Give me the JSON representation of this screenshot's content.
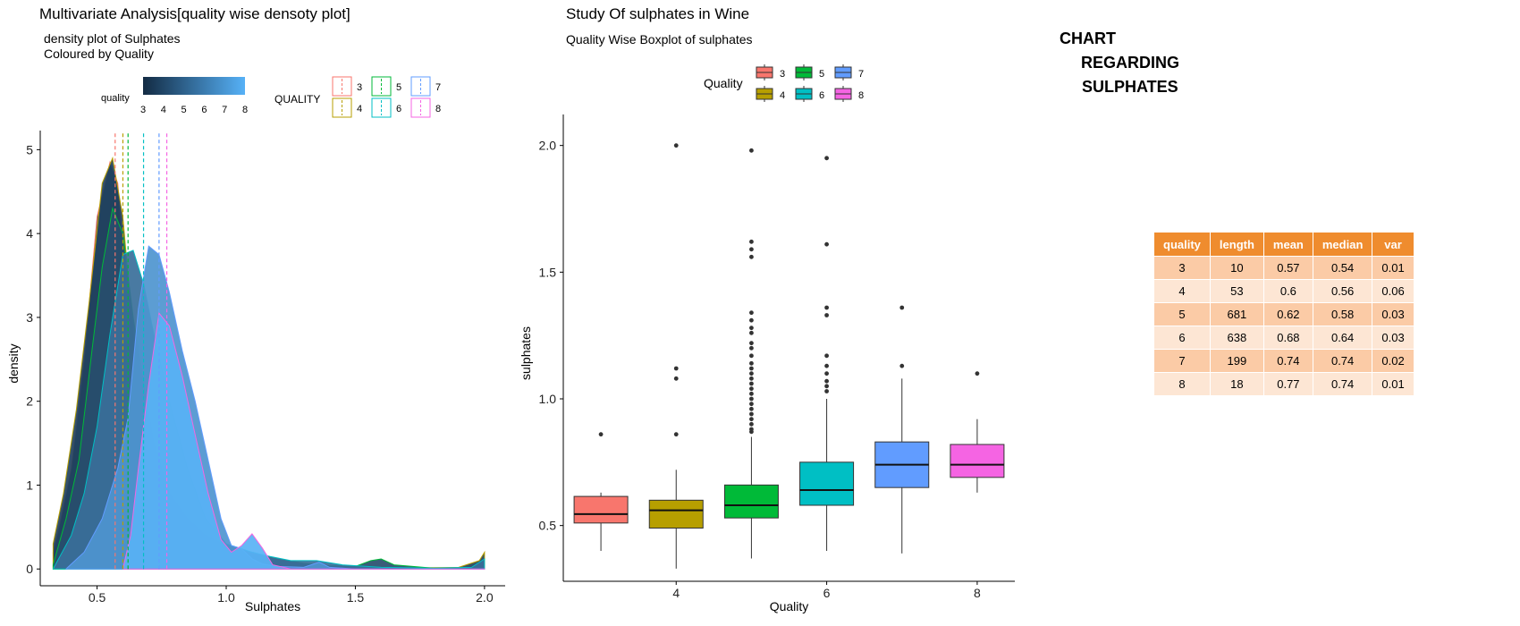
{
  "left_panel": {
    "title": "Multivariate Analysis[quality wise densoty plot]",
    "subtitle_line1": "density plot of Sulphates",
    "subtitle_line2": "Coloured by Quality",
    "legend_fill_title": "quality",
    "legend_fill_ticks": [
      "3",
      "4",
      "5",
      "6",
      "7",
      "8"
    ],
    "legend_line_title": "QUALITY"
  },
  "right_panel": {
    "title": "Study Of  sulphates in Wine",
    "subtitle": "Quality Wise Boxplot of sulphates",
    "legend_title": "Quality"
  },
  "side_title": {
    "line1": "CHART",
    "line2": "REGARDING",
    "line3": "SULPHATES"
  },
  "stats_table": {
    "headers": [
      "quality",
      "length",
      "mean",
      "median",
      "var"
    ],
    "rows": [
      [
        "3",
        "10",
        "0.57",
        "0.54",
        "0.01"
      ],
      [
        "4",
        "53",
        "0.6",
        "0.56",
        "0.06"
      ],
      [
        "5",
        "681",
        "0.62",
        "0.58",
        "0.03"
      ],
      [
        "6",
        "638",
        "0.68",
        "0.64",
        "0.03"
      ],
      [
        "7",
        "199",
        "0.74",
        "0.74",
        "0.02"
      ],
      [
        "8",
        "18",
        "0.77",
        "0.74",
        "0.01"
      ]
    ]
  },
  "colors": {
    "q3": "#f8766d",
    "q4": "#b79f00",
    "q5": "#00ba38",
    "q6": "#00bfc4",
    "q7": "#619cff",
    "q8": "#f564e3",
    "fill_low": "#132b43",
    "fill_high": "#56b1f7",
    "table_header": "#ef8c2e"
  },
  "chart_data": [
    {
      "type": "area",
      "title": "Multivariate Analysis[quality wise densoty plot]",
      "subtitle": "density plot of Sulphates / Coloured by Quality",
      "xlabel": "Sulphates",
      "ylabel": "density",
      "xlim": [
        0.28,
        2.08
      ],
      "ylim": [
        -0.2,
        5.1
      ],
      "xticks": [
        0.5,
        1.0,
        1.5,
        2.0
      ],
      "xtick_labels": [
        "0.5",
        "1.0",
        "1.5",
        "2.0"
      ],
      "yticks": [
        0,
        1,
        2,
        3,
        4,
        5
      ],
      "ytick_labels": [
        "0",
        "1",
        "2",
        "3",
        "4",
        "5"
      ],
      "grid": false,
      "legend_position": "top",
      "mean_lines": [
        {
          "quality": "3",
          "x": 0.57
        },
        {
          "quality": "4",
          "x": 0.6
        },
        {
          "quality": "5",
          "x": 0.62
        },
        {
          "quality": "6",
          "x": 0.68
        },
        {
          "quality": "7",
          "x": 0.74
        },
        {
          "quality": "8",
          "x": 0.77
        }
      ],
      "series": [
        {
          "name": "3",
          "points": [
            [
              0.33,
              0.2
            ],
            [
              0.36,
              0.6
            ],
            [
              0.4,
              1.2
            ],
            [
              0.45,
              2.5
            ],
            [
              0.5,
              4.2
            ],
            [
              0.55,
              4.85
            ],
            [
              0.58,
              4.6
            ],
            [
              0.61,
              3.5
            ],
            [
              0.65,
              2.0
            ],
            [
              0.7,
              0.9
            ],
            [
              0.78,
              0.35
            ],
            [
              0.86,
              0.2
            ],
            [
              0.95,
              0.05
            ],
            [
              1.0,
              0.02
            ],
            [
              1.1,
              0.0
            ],
            [
              2.0,
              0.0
            ]
          ]
        },
        {
          "name": "4",
          "points": [
            [
              0.33,
              0.3
            ],
            [
              0.37,
              0.9
            ],
            [
              0.42,
              1.9
            ],
            [
              0.47,
              3.2
            ],
            [
              0.52,
              4.6
            ],
            [
              0.56,
              4.9
            ],
            [
              0.6,
              4.2
            ],
            [
              0.64,
              2.8
            ],
            [
              0.68,
              1.6
            ],
            [
              0.75,
              0.8
            ],
            [
              0.82,
              0.45
            ],
            [
              0.86,
              0.4
            ],
            [
              0.9,
              0.25
            ],
            [
              1.0,
              0.1
            ],
            [
              1.1,
              0.1
            ],
            [
              1.12,
              0.08
            ],
            [
              1.2,
              0.02
            ],
            [
              1.3,
              0.0
            ],
            [
              1.9,
              0.02
            ],
            [
              1.98,
              0.1
            ],
            [
              2.0,
              0.2
            ]
          ]
        },
        {
          "name": "5",
          "points": [
            [
              0.33,
              0.05
            ],
            [
              0.38,
              0.6
            ],
            [
              0.43,
              1.3
            ],
            [
              0.48,
              2.6
            ],
            [
              0.52,
              3.6
            ],
            [
              0.56,
              4.3
            ],
            [
              0.6,
              4.0
            ],
            [
              0.64,
              3.0
            ],
            [
              0.68,
              2.2
            ],
            [
              0.72,
              1.5
            ],
            [
              0.78,
              0.9
            ],
            [
              0.85,
              0.6
            ],
            [
              0.92,
              0.4
            ],
            [
              1.0,
              0.28
            ],
            [
              1.1,
              0.2
            ],
            [
              1.2,
              0.12
            ],
            [
              1.3,
              0.07
            ],
            [
              1.4,
              0.04
            ],
            [
              1.5,
              0.03
            ],
            [
              1.56,
              0.1
            ],
            [
              1.6,
              0.12
            ],
            [
              1.65,
              0.05
            ],
            [
              1.8,
              0.01
            ],
            [
              2.0,
              0.0
            ]
          ]
        },
        {
          "name": "6",
          "points": [
            [
              0.33,
              0.0
            ],
            [
              0.4,
              0.4
            ],
            [
              0.45,
              0.9
            ],
            [
              0.5,
              1.7
            ],
            [
              0.55,
              2.8
            ],
            [
              0.6,
              3.75
            ],
            [
              0.64,
              3.8
            ],
            [
              0.68,
              3.4
            ],
            [
              0.72,
              2.8
            ],
            [
              0.78,
              2.0
            ],
            [
              0.85,
              1.2
            ],
            [
              0.92,
              0.6
            ],
            [
              1.0,
              0.3
            ],
            [
              1.1,
              0.2
            ],
            [
              1.17,
              0.15
            ],
            [
              1.25,
              0.1
            ],
            [
              1.35,
              0.1
            ],
            [
              1.45,
              0.05
            ],
            [
              1.6,
              0.02
            ],
            [
              1.8,
              0.01
            ],
            [
              1.95,
              0.02
            ],
            [
              2.0,
              0.12
            ]
          ]
        },
        {
          "name": "7",
          "points": [
            [
              0.38,
              0.0
            ],
            [
              0.45,
              0.2
            ],
            [
              0.52,
              0.6
            ],
            [
              0.58,
              1.2
            ],
            [
              0.62,
              1.8
            ],
            [
              0.66,
              3.1
            ],
            [
              0.7,
              3.85
            ],
            [
              0.74,
              3.75
            ],
            [
              0.78,
              3.3
            ],
            [
              0.83,
              2.6
            ],
            [
              0.88,
              2.0
            ],
            [
              0.93,
              1.3
            ],
            [
              0.98,
              0.6
            ],
            [
              1.02,
              0.28
            ],
            [
              1.06,
              0.24
            ],
            [
              1.1,
              0.12
            ],
            [
              1.14,
              0.06
            ],
            [
              1.2,
              0.03
            ],
            [
              1.3,
              0.02
            ],
            [
              1.36,
              0.08
            ],
            [
              1.4,
              0.02
            ],
            [
              1.5,
              0.0
            ],
            [
              2.0,
              0.0
            ]
          ]
        },
        {
          "name": "8",
          "points": [
            [
              0.6,
              0.0
            ],
            [
              0.63,
              0.4
            ],
            [
              0.66,
              1.2
            ],
            [
              0.7,
              2.2
            ],
            [
              0.74,
              3.05
            ],
            [
              0.78,
              2.9
            ],
            [
              0.83,
              2.3
            ],
            [
              0.88,
              1.6
            ],
            [
              0.93,
              0.9
            ],
            [
              0.98,
              0.35
            ],
            [
              1.02,
              0.2
            ],
            [
              1.06,
              0.28
            ],
            [
              1.1,
              0.42
            ],
            [
              1.14,
              0.25
            ],
            [
              1.18,
              0.05
            ],
            [
              1.25,
              0.0
            ],
            [
              2.0,
              0.0
            ]
          ]
        }
      ]
    },
    {
      "type": "box",
      "title": "Study Of  sulphates in Wine",
      "subtitle": "Quality Wise Boxplot of sulphates",
      "xlabel": "Quality",
      "ylabel": "sulphates",
      "xlim": [
        2.5,
        8.5
      ],
      "ylim": [
        0.28,
        2.08
      ],
      "xticks": [
        4,
        6,
        8
      ],
      "xtick_labels": [
        "4",
        "6",
        "8"
      ],
      "yticks": [
        0.5,
        1.0,
        1.5,
        2.0
      ],
      "ytick_labels": [
        "0.5",
        "1.0",
        "1.5",
        "2.0"
      ],
      "grid": false,
      "legend_title": "Quality",
      "legend_position": "top",
      "boxes": [
        {
          "quality": "3",
          "x": 3,
          "min": 0.4,
          "q1": 0.51,
          "median": 0.545,
          "q3": 0.615,
          "max": 0.63,
          "outliers": [
            0.86
          ]
        },
        {
          "quality": "4",
          "x": 4,
          "min": 0.33,
          "q1": 0.49,
          "median": 0.56,
          "q3": 0.6,
          "max": 0.72,
          "outliers": [
            0.86,
            1.08,
            1.12,
            2.0
          ]
        },
        {
          "quality": "5",
          "x": 5,
          "min": 0.37,
          "q1": 0.53,
          "median": 0.58,
          "q3": 0.66,
          "max": 0.85,
          "outliers": [
            0.87,
            0.88,
            0.9,
            0.92,
            0.94,
            0.96,
            0.98,
            1.0,
            1.02,
            1.04,
            1.06,
            1.08,
            1.1,
            1.12,
            1.14,
            1.17,
            1.2,
            1.22,
            1.26,
            1.28,
            1.31,
            1.34,
            1.56,
            1.59,
            1.62,
            1.98
          ]
        },
        {
          "quality": "6",
          "x": 6,
          "min": 0.4,
          "q1": 0.58,
          "median": 0.64,
          "q3": 0.75,
          "max": 1.0,
          "outliers": [
            1.03,
            1.05,
            1.07,
            1.1,
            1.13,
            1.17,
            1.33,
            1.36,
            1.61,
            1.95
          ]
        },
        {
          "quality": "7",
          "x": 7,
          "min": 0.39,
          "q1": 0.65,
          "median": 0.74,
          "q3": 0.83,
          "max": 1.08,
          "outliers": [
            1.13,
            1.36
          ]
        },
        {
          "quality": "8",
          "x": 8,
          "min": 0.63,
          "q1": 0.69,
          "median": 0.74,
          "q3": 0.82,
          "max": 0.92,
          "outliers": [
            1.1
          ]
        }
      ]
    }
  ]
}
